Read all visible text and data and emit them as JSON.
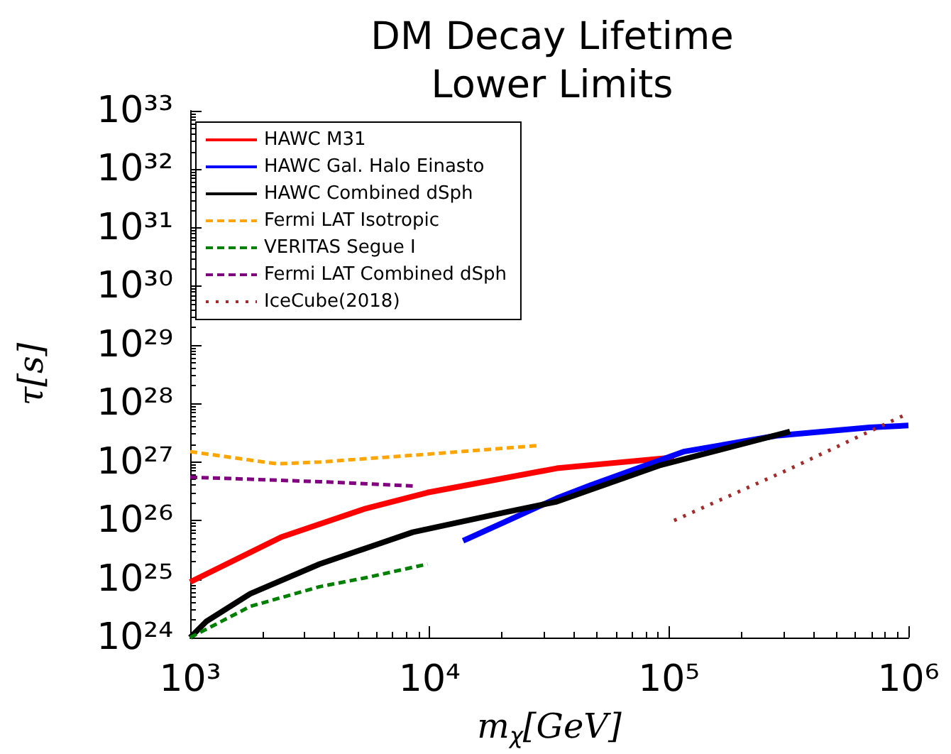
{
  "chart_data": {
    "type": "line",
    "title": "DM Decay Lifetime\nLower Limits",
    "xlabel": "m$_{χ}$[GeV]",
    "ylabel": "τ[s]",
    "log": "xy",
    "grid": false,
    "legend": "top left",
    "marker": "none",
    "xlim": [
      1000,
      1000000
    ],
    "xticks": [
      {
        "value": 1000,
        "label": "10³"
      },
      {
        "value": 10000,
        "label": "10⁴"
      },
      {
        "value": 100000,
        "label": "10⁵"
      },
      {
        "value": 1000000,
        "label": "10⁶"
      }
    ],
    "ylim": [
      1e+24,
      1e+33
    ],
    "yticks": [
      {
        "value": 1e+24,
        "label": "10²⁴"
      },
      {
        "value": 1e+25,
        "label": "10²⁵"
      },
      {
        "value": 1e+26,
        "label": "10²⁶"
      },
      {
        "value": 1e+27,
        "label": "10²⁷"
      },
      {
        "value": 1e+28,
        "label": "10²⁸"
      },
      {
        "value": 1e+29,
        "label": "10²⁹"
      },
      {
        "value": 1e+30,
        "label": "10³⁰"
      },
      {
        "value": 1e+31,
        "label": "10³¹"
      },
      {
        "value": 1e+32,
        "label": "10³²"
      },
      {
        "value": 1e+33,
        "label": "10³³"
      }
    ],
    "series": [
      {
        "name": "HAWC M31",
        "color": "#ff0000",
        "line_style": "solid",
        "x": [
          1000,
          2400,
          5400,
          9800,
          34000,
          105000
        ],
        "values": [
          8.9e+24,
          5.2e+25,
          1.6e+26,
          3e+26,
          7.8e+26,
          1.2e+27
        ]
      },
      {
        "name": "HAWC Gal. Halo Einasto",
        "color": "#0000ff",
        "line_style": "solid",
        "x": [
          13800,
          22400,
          34000,
          47000,
          115000,
          280000,
          690000,
          1000000
        ],
        "values": [
          4.5e+25,
          1.1e+26,
          2.4e+26,
          4e+26,
          1.5e+27,
          2.8e+27,
          3.9e+27,
          4.2e+27
        ]
      },
      {
        "name": "HAWC Combined dSph",
        "color": "#000000",
        "line_style": "solid",
        "x": [
          1000,
          1170,
          1780,
          3470,
          8500,
          21000,
          34000,
          91000,
          320000
        ],
        "values": [
          1e+24,
          1.9e+24,
          5.6e+24,
          1.8e+25,
          6.3e+25,
          1.4e+26,
          2.1e+26,
          8.7e+26,
          3.3e+27
        ]
      },
      {
        "name": "Fermi LAT Isotropic",
        "color": "#ffa500",
        "line_style": "dashed",
        "x": [
          1000,
          2300,
          3500,
          8500,
          28000
        ],
        "values": [
          1.5e+27,
          9.3e+26,
          1e+27,
          1.3e+27,
          1.9e+27
        ]
      },
      {
        "name": "VERITAS Segue I",
        "color": "#008000",
        "line_style": "dashed",
        "x": [
          1000,
          1780,
          3470,
          5400,
          9800
        ],
        "values": [
          1e+24,
          3.4e+24,
          7.4e+24,
          1.05e+25,
          1.8e+25
        ]
      },
      {
        "name": "Fermi LAT Combined dSph",
        "color": "#800080",
        "line_style": "dashed",
        "x": [
          1000,
          3500,
          8500
        ],
        "values": [
          5.5e+26,
          4.6e+26,
          3.9e+26
        ]
      },
      {
        "name": "IceCube(2018)",
        "color": "#a52a2a",
        "line_style": "dotted",
        "x": [
          105000,
          310000,
          1000000
        ],
        "values": [
          1e+26,
          7.2e+26,
          6.8e+27
        ]
      }
    ]
  }
}
